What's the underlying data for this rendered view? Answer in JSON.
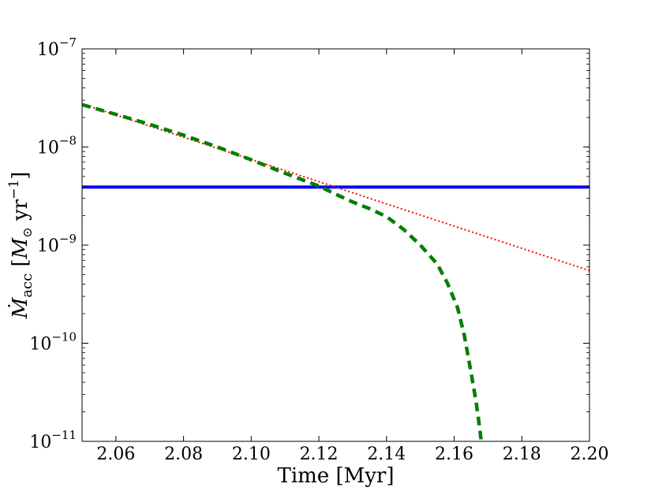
{
  "chart_data": {
    "type": "line",
    "title": "",
    "xlabel": "Time [Myr]",
    "ylabel": "Ṁacc [M☉ yr⁻¹]",
    "ylabel_parts": {
      "symbol": "Ṁ",
      "subscript": "acc",
      "open": " [",
      "unit_symbol": "M",
      "unit_subscript": "⊙",
      "unit_rest": " yr",
      "exponent": "−1",
      "close": "]"
    },
    "xlim": [
      2.05,
      2.2
    ],
    "ylim": [
      1e-11,
      1e-07
    ],
    "yscale": "log",
    "grid": false,
    "x_ticks": [
      {
        "value": 2.06,
        "label": "2.06"
      },
      {
        "value": 2.08,
        "label": "2.08"
      },
      {
        "value": 2.1,
        "label": "2.10"
      },
      {
        "value": 2.12,
        "label": "2.12"
      },
      {
        "value": 2.14,
        "label": "2.14"
      },
      {
        "value": 2.16,
        "label": "2.16"
      },
      {
        "value": 2.18,
        "label": "2.18"
      },
      {
        "value": 2.2,
        "label": "2.20"
      }
    ],
    "y_ticks": [
      {
        "value": 1e-07,
        "base": "10",
        "exp": "−7"
      },
      {
        "value": 1e-08,
        "base": "10",
        "exp": "−8"
      },
      {
        "value": 1e-09,
        "base": "10",
        "exp": "−9"
      },
      {
        "value": 1e-10,
        "base": "10",
        "exp": "−10"
      },
      {
        "value": 1e-11,
        "base": "10",
        "exp": "−11"
      }
    ],
    "series": [
      {
        "style": "solid",
        "color": "#0000ff",
        "x": [
          2.05,
          2.2
        ],
        "y": [
          3.9e-09,
          3.9e-09
        ]
      },
      {
        "style": "dotted",
        "color": "#ff0000",
        "x": [
          2.05,
          2.2
        ],
        "y": [
          2.75e-08,
          5.5e-10
        ]
      },
      {
        "style": "dashed",
        "color": "#007f00",
        "x": [
          2.05,
          2.06,
          2.07,
          2.08,
          2.09,
          2.1,
          2.11,
          2.12,
          2.125,
          2.13,
          2.135,
          2.14,
          2.145,
          2.15,
          2.155,
          2.158,
          2.161,
          2.163,
          2.165,
          2.1665,
          2.1675,
          2.168
        ],
        "y": [
          2.7e-08,
          2.15e-08,
          1.7e-08,
          1.32e-08,
          1e-08,
          7.4e-09,
          5.4e-09,
          4e-09,
          3.3e-09,
          2.75e-09,
          2.35e-09,
          1.95e-09,
          1.45e-09,
          1e-09,
          6.4e-10,
          4.1e-10,
          2.3e-10,
          1.2e-10,
          5e-11,
          2.5e-11,
          1.4e-11,
          1e-11
        ]
      }
    ]
  }
}
